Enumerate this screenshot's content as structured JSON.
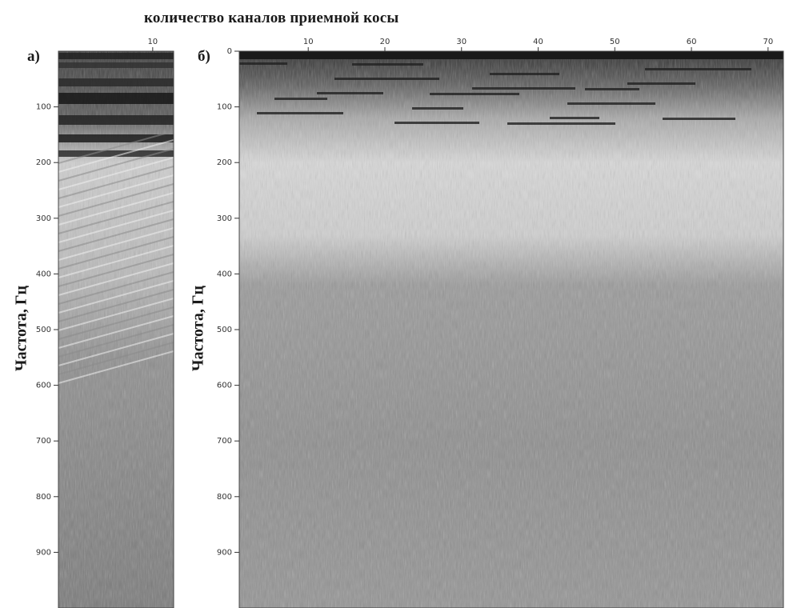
{
  "title": "количество каналов приемной косы",
  "chart_data": [
    {
      "type": "heatmap",
      "panel": "а)",
      "xlabel": "",
      "ylabel": "Частота, Гц",
      "x_ticks": [
        10
      ],
      "xlim": [
        1,
        12
      ],
      "y_ticks": [
        100,
        200,
        300,
        400,
        500,
        600,
        700,
        800,
        900
      ],
      "ylim": [
        0,
        1000
      ],
      "y_inverted": true
    },
    {
      "type": "heatmap",
      "panel": "б)",
      "xlabel": "",
      "ylabel": "Частота, Гц",
      "x_ticks": [
        10,
        20,
        30,
        40,
        50,
        60,
        70
      ],
      "xlim": [
        1,
        72
      ],
      "y_ticks": [
        0,
        100,
        200,
        300,
        400,
        500,
        600,
        700,
        800,
        900
      ],
      "ylim": [
        0,
        1000
      ],
      "y_inverted": true
    }
  ]
}
